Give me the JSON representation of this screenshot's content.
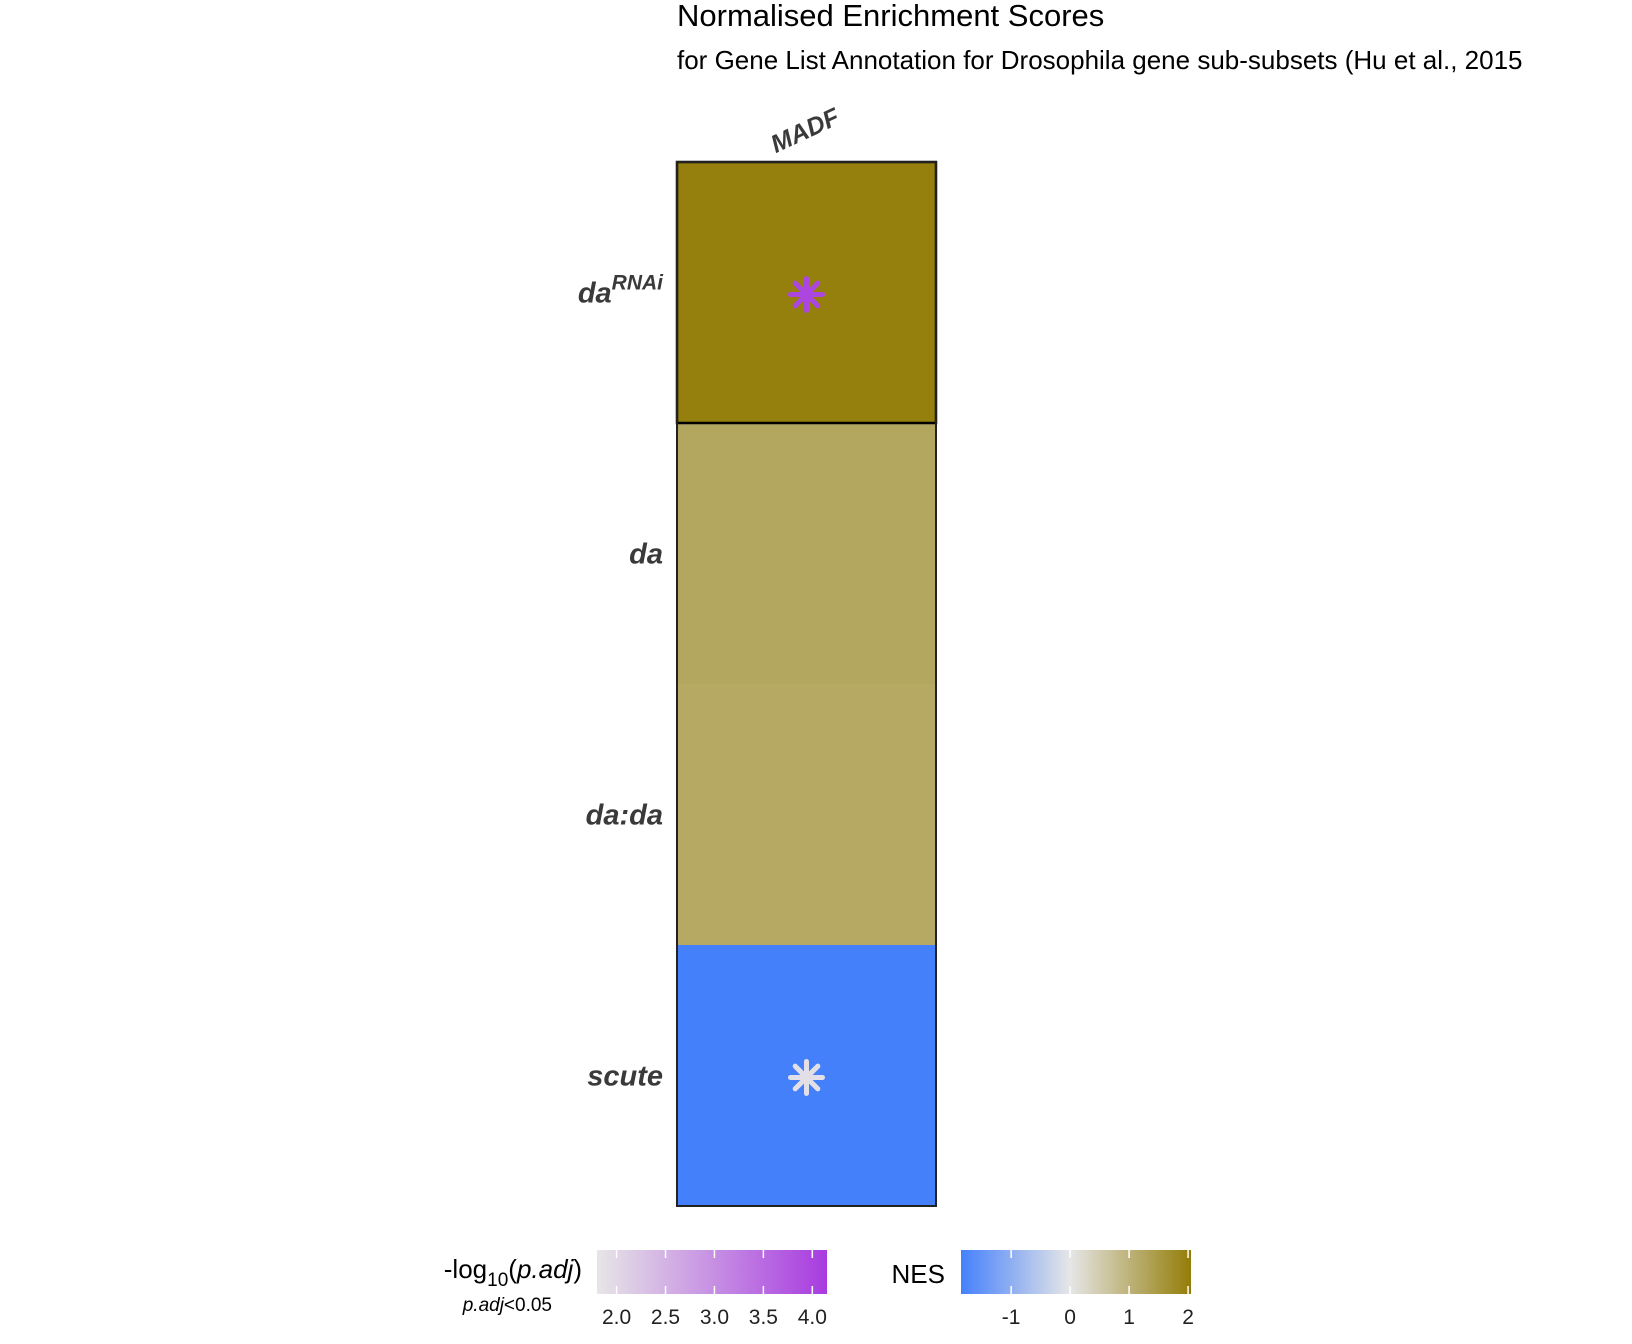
{
  "chart_data": {
    "type": "heatmap",
    "title": "Normalised Enrichment Scores",
    "subtitle": "for Gene List Annotation for Drosophila gene sub-subsets (Hu et al., 2015",
    "columns": [
      "MADF"
    ],
    "rows": [
      {
        "label_base": "da",
        "label_sup": "RNAi",
        "nes": 2.0,
        "significant": true,
        "neg_log10_padj": 4.0
      },
      {
        "label_base": "da",
        "label_sup": "",
        "nes": 1.25,
        "significant": false,
        "neg_log10_padj": null
      },
      {
        "label_base": "da:da",
        "label_sup": "",
        "nes": 1.2,
        "significant": false,
        "neg_log10_padj": null
      },
      {
        "label_base": "scute",
        "label_sup": "",
        "nes": -1.85,
        "significant": true,
        "neg_log10_padj": 1.9
      }
    ],
    "nes_scale": {
      "title": "NES",
      "range": [
        -1.85,
        2.05
      ],
      "ticks": [
        -1,
        0,
        1,
        2
      ],
      "tick_labels": [
        "-1",
        "0",
        "1",
        "2"
      ],
      "colors": {
        "low": "#4580FB",
        "mid": "#E6E6E6",
        "high": "#937D08"
      }
    },
    "padj_scale": {
      "title_prefix": "-log",
      "title_sub": "10",
      "title_arg": "p.adj",
      "note_italic": "p.adj",
      "note_rest": "<0.05",
      "range": [
        1.8,
        4.15
      ],
      "ticks": [
        2.0,
        2.5,
        3.0,
        3.5,
        4.0
      ],
      "tick_labels": [
        "2.0",
        "2.5",
        "3.0",
        "3.5",
        "4.0"
      ],
      "colors": {
        "low": "#E6E6E6",
        "high": "#A83BE0"
      }
    }
  }
}
